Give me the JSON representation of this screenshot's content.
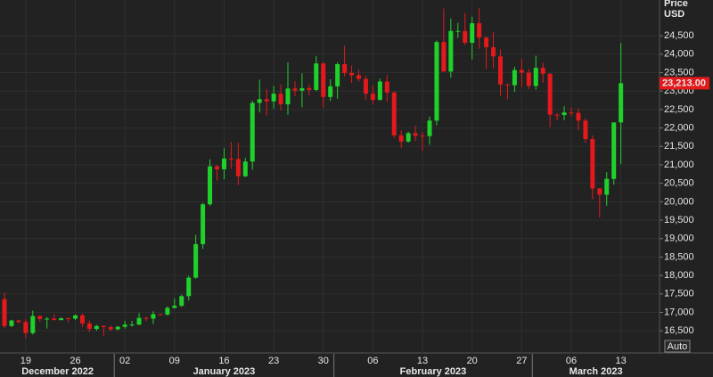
{
  "chart_data": {
    "type": "candlestick",
    "y_axis_title": "Price",
    "y_axis_unit": "USD",
    "x": [
      "2022-12-16",
      "2022-12-17",
      "2022-12-18",
      "2022-12-19",
      "2022-12-20",
      "2022-12-21",
      "2022-12-22",
      "2022-12-23",
      "2022-12-24",
      "2022-12-25",
      "2022-12-26",
      "2022-12-27",
      "2022-12-28",
      "2022-12-29",
      "2022-12-30",
      "2022-12-31",
      "2023-01-01",
      "2023-01-02",
      "2023-01-03",
      "2023-01-04",
      "2023-01-05",
      "2023-01-06",
      "2023-01-07",
      "2023-01-08",
      "2023-01-09",
      "2023-01-10",
      "2023-01-11",
      "2023-01-12",
      "2023-01-13",
      "2023-01-14",
      "2023-01-15",
      "2023-01-16",
      "2023-01-17",
      "2023-01-18",
      "2023-01-19",
      "2023-01-20",
      "2023-01-21",
      "2023-01-22",
      "2023-01-23",
      "2023-01-24",
      "2023-01-25",
      "2023-01-26",
      "2023-01-27",
      "2023-01-28",
      "2023-01-29",
      "2023-01-30",
      "2023-01-31",
      "2023-02-01",
      "2023-02-02",
      "2023-02-03",
      "2023-02-04",
      "2023-02-05",
      "2023-02-06",
      "2023-02-07",
      "2023-02-08",
      "2023-02-09",
      "2023-02-10",
      "2023-02-11",
      "2023-02-12",
      "2023-02-13",
      "2023-02-14",
      "2023-02-15",
      "2023-02-16",
      "2023-02-17",
      "2023-02-18",
      "2023-02-19",
      "2023-02-20",
      "2023-02-21",
      "2023-02-22",
      "2023-02-23",
      "2023-02-24",
      "2023-02-25",
      "2023-02-26",
      "2023-02-27",
      "2023-02-28",
      "2023-03-01",
      "2023-03-02",
      "2023-03-03",
      "2023-03-04",
      "2023-03-05",
      "2023-03-06",
      "2023-03-07",
      "2023-03-08",
      "2023-03-09",
      "2023-03-10",
      "2023-03-11",
      "2023-03-12",
      "2023-03-13"
    ],
    "open": [
      17360,
      16630,
      16780,
      16740,
      16440,
      16900,
      16820,
      16830,
      16790,
      16840,
      16830,
      16920,
      16700,
      16550,
      16630,
      16600,
      16540,
      16610,
      16670,
      16670,
      16850,
      16830,
      16950,
      16940,
      17120,
      17180,
      17440,
      17940,
      18850,
      19930,
      20960,
      20880,
      21170,
      21160,
      20690,
      21090,
      22680,
      22780,
      22720,
      22930,
      22640,
      23070,
      23010,
      23080,
      23030,
      23750,
      22840,
      23130,
      23730,
      23490,
      23430,
      23330,
      22930,
      22760,
      23260,
      22960,
      21800,
      21630,
      21860,
      21790,
      21780,
      22200,
      24330,
      23530,
      24630,
      24630,
      24310,
      24840,
      24450,
      24190,
      23940,
      23180,
      23160,
      23570,
      23500,
      23140,
      23630,
      23470,
      22360,
      22350,
      22420,
      22410,
      22200,
      21700,
      20360,
      20190,
      20620,
      22150
    ],
    "high": [
      17530,
      16800,
      16800,
      16820,
      17050,
      16920,
      16870,
      16950,
      16860,
      16860,
      16940,
      16970,
      16780,
      16660,
      16650,
      16640,
      16630,
      16770,
      16770,
      16980,
      16880,
      17030,
      16960,
      17160,
      17380,
      17480,
      17990,
      19100,
      19970,
      21150,
      21000,
      21450,
      21620,
      21600,
      21190,
      22740,
      23310,
      23060,
      23140,
      23180,
      23780,
      23270,
      23480,
      23180,
      23950,
      23790,
      23320,
      23780,
      24230,
      23690,
      23580,
      23420,
      23150,
      23340,
      23430,
      23000,
      21940,
      21900,
      22060,
      21890,
      22310,
      24370,
      25240,
      24970,
      24850,
      25120,
      25020,
      25250,
      24480,
      24600,
      24130,
      23200,
      23660,
      23880,
      23600,
      23960,
      23770,
      23480,
      22400,
      22590,
      22560,
      22530,
      22260,
      21800,
      20370,
      20800,
      22150,
      24300
    ],
    "low": [
      16580,
      16600,
      16700,
      16300,
      16400,
      16750,
      16560,
      16790,
      16790,
      16730,
      16790,
      16600,
      16470,
      16500,
      16360,
      16490,
      16520,
      16560,
      16610,
      16650,
      16760,
      16680,
      16910,
      16910,
      17110,
      17140,
      17320,
      17910,
      18720,
      19890,
      20580,
      20610,
      20890,
      20450,
      20670,
      20870,
      22420,
      22340,
      22520,
      22480,
      22360,
      22860,
      22560,
      22880,
      23000,
      22550,
      22730,
      22790,
      23400,
      23220,
      23260,
      22770,
      22640,
      22750,
      22710,
      21730,
      21460,
      21600,
      21640,
      21380,
      21550,
      22070,
      23600,
      23360,
      24440,
      24250,
      23860,
      24150,
      23600,
      23620,
      22870,
      22780,
      22980,
      23110,
      23050,
      23040,
      23230,
      22020,
      22210,
      22210,
      22320,
      21940,
      21600,
      20070,
      19570,
      19890,
      20460,
      21020
    ],
    "close": [
      16630,
      16780,
      16740,
      16440,
      16900,
      16820,
      16830,
      16790,
      16840,
      16830,
      16920,
      16700,
      16550,
      16630,
      16600,
      16540,
      16610,
      16670,
      16670,
      16850,
      16830,
      16950,
      16940,
      17120,
      17180,
      17440,
      17940,
      18850,
      19930,
      20960,
      20880,
      21170,
      21160,
      20690,
      21090,
      22680,
      22780,
      22720,
      22930,
      22640,
      23070,
      23010,
      23080,
      23030,
      23750,
      22840,
      23130,
      23730,
      23490,
      23430,
      23330,
      22930,
      22760,
      23260,
      22960,
      21800,
      21630,
      21860,
      21790,
      21780,
      22200,
      24330,
      23530,
      24630,
      24630,
      24310,
      24840,
      24450,
      24190,
      23940,
      23180,
      23160,
      23570,
      23500,
      23140,
      23630,
      23470,
      22360,
      22350,
      22420,
      22410,
      22200,
      21700,
      20360,
      20190,
      20620,
      22150,
      23213
    ],
    "up_color": "#1fd12b",
    "down_color": "#e3191c",
    "ylim": [
      15900,
      25470
    ],
    "yticks": [
      {
        "value": 16500,
        "label": "16,500"
      },
      {
        "value": 17000,
        "label": "17,000"
      },
      {
        "value": 17500,
        "label": "17,500"
      },
      {
        "value": 18000,
        "label": "18,000"
      },
      {
        "value": 18500,
        "label": "18,500"
      },
      {
        "value": 19000,
        "label": "19,000"
      },
      {
        "value": 19500,
        "label": "19,500"
      },
      {
        "value": 20000,
        "label": "20,000"
      },
      {
        "value": 20500,
        "label": "20,500"
      },
      {
        "value": 21000,
        "label": "21,000"
      },
      {
        "value": 21500,
        "label": "21,500"
      },
      {
        "value": 22000,
        "label": "22,000"
      },
      {
        "value": 22500,
        "label": "22,500"
      },
      {
        "value": 23000,
        "label": "23,000"
      },
      {
        "value": 23500,
        "label": "23,500"
      },
      {
        "value": 24000,
        "label": "24,000"
      },
      {
        "value": 24500,
        "label": "24,500"
      }
    ],
    "xticks": [
      {
        "value": "2022-12-19",
        "label": "19"
      },
      {
        "value": "2022-12-26",
        "label": "26"
      },
      {
        "value": "2023-01-02",
        "label": "02"
      },
      {
        "value": "2023-01-09",
        "label": "09"
      },
      {
        "value": "2023-01-16",
        "label": "16"
      },
      {
        "value": "2023-01-23",
        "label": "23"
      },
      {
        "value": "2023-01-30",
        "label": "30"
      },
      {
        "value": "2023-02-06",
        "label": "06"
      },
      {
        "value": "2023-02-13",
        "label": "13"
      },
      {
        "value": "2023-02-20",
        "label": "20"
      },
      {
        "value": "2023-02-27",
        "label": "27"
      },
      {
        "value": "2023-03-06",
        "label": "06"
      },
      {
        "value": "2023-03-13",
        "label": "13"
      }
    ],
    "months": [
      {
        "value": "2022-12-16",
        "label": "December 2022"
      },
      {
        "value": "2023-01-01",
        "label": "January 2023"
      },
      {
        "value": "2023-02-01",
        "label": "February 2023"
      },
      {
        "value": "2023-03-01",
        "label": "March 2023"
      }
    ],
    "last_price": {
      "value": 23213,
      "label": "23,213.00"
    },
    "grid": true,
    "auto_button": "Auto"
  }
}
